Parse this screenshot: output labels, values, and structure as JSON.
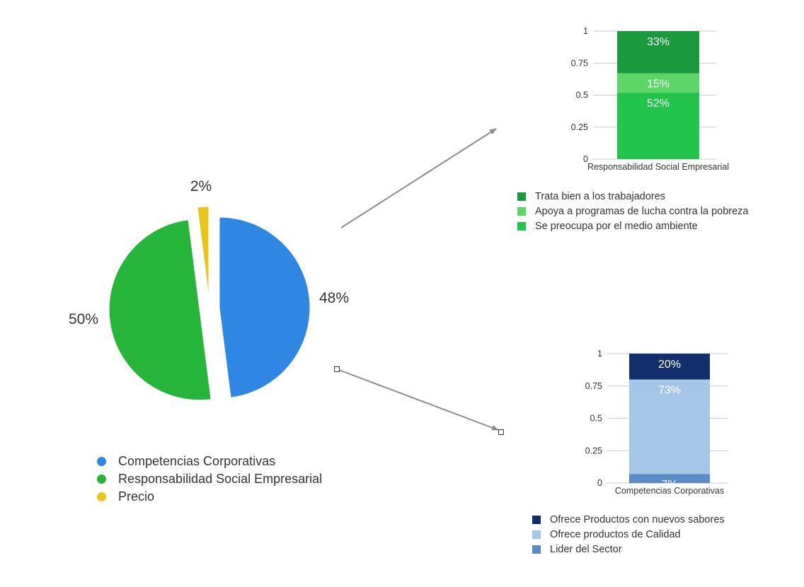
{
  "chart_data": [
    {
      "type": "pie",
      "categories": [
        "Competencias Corporativas",
        "Responsabilidad Social Empresarial",
        "Precio"
      ],
      "values": [
        48,
        50,
        2
      ],
      "data_labels": [
        "48%",
        "50%",
        "2%"
      ],
      "colors": [
        "#2f86e3",
        "#27b43a",
        "#e8c51a"
      ],
      "legend_position": "bottom"
    },
    {
      "type": "bar",
      "stacked": true,
      "categories": [
        "Responsabilidad Social Empresarial"
      ],
      "series": [
        {
          "name": "Se preocupa por el medio ambiente",
          "values": [
            0.52
          ],
          "label": "52%",
          "color": "#22c44b"
        },
        {
          "name": "Apoya a programas de lucha contra la pobreza",
          "values": [
            0.15
          ],
          "label": "15%",
          "color": "#5ed567"
        },
        {
          "name": "Trata bien a los trabajadores",
          "values": [
            0.33
          ],
          "label": "33%",
          "color": "#1a9a3c"
        }
      ],
      "legend_order": [
        "Trata bien a los trabajadores",
        "Apoya a programas de lucha contra la pobreza",
        "Se preocupa por el medio ambiente"
      ],
      "xlabel": "Responsabilidad Social Empresarial",
      "ylim": [
        0,
        1
      ],
      "yticks": [
        "0",
        "0.25",
        "0.5",
        "0.75",
        "1"
      ],
      "grid": true,
      "legend_position": "bottom"
    },
    {
      "type": "bar",
      "stacked": true,
      "categories": [
        "Competencias Corporativas"
      ],
      "series": [
        {
          "name": "Lider del Sector",
          "values": [
            0.07
          ],
          "label": "7%",
          "color": "#5b8ac9"
        },
        {
          "name": "Ofrece productos de Calidad",
          "values": [
            0.73
          ],
          "label": "73%",
          "color": "#a6c6e8"
        },
        {
          "name": "Ofrece Productos con nuevos sabores",
          "values": [
            0.2
          ],
          "label": "20%",
          "color": "#122e6c"
        }
      ],
      "legend_order": [
        "Ofrece Productos con nuevos sabores",
        "Ofrece productos de Calidad",
        "Lider del Sector"
      ],
      "xlabel": "Competencias Corporativas",
      "ylim": [
        0,
        1
      ],
      "yticks": [
        "0",
        "0.25",
        "0.5",
        "0.75",
        "1"
      ],
      "grid": true,
      "legend_position": "bottom"
    }
  ]
}
